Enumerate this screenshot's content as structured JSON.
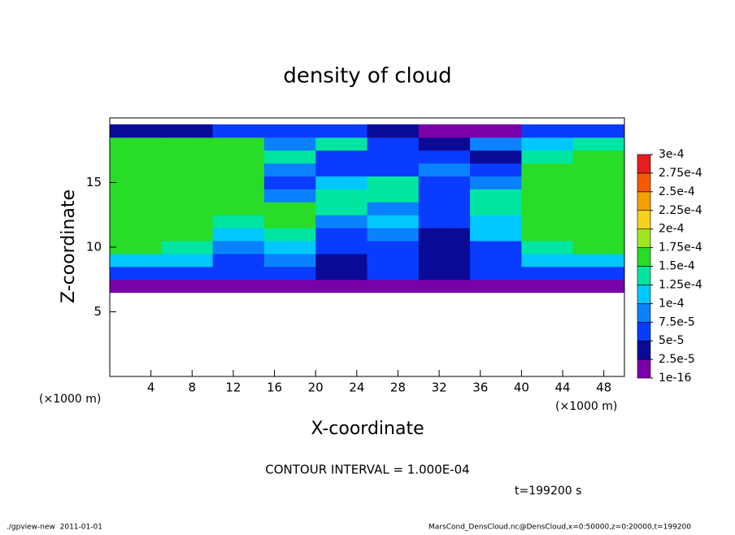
{
  "chart_data": {
    "type": "contour",
    "title": "density of cloud",
    "x_label": "X-coordinate",
    "y_label": "Z-coordinate",
    "x_unit_label": "(×1000 m)",
    "y_unit_label": "(×1000 m)",
    "xlim": [
      0,
      50
    ],
    "ylim": [
      0,
      20
    ],
    "xticks": [
      4,
      8,
      12,
      16,
      20,
      24,
      28,
      32,
      36,
      40,
      44,
      48
    ],
    "yticks": [
      5,
      10,
      15
    ],
    "x_bins": [
      0,
      5,
      10,
      15,
      20,
      25,
      30,
      35,
      40,
      45,
      50
    ],
    "z_bins": [
      6.5,
      7.5,
      8.5,
      9.5,
      10.5,
      11.5,
      12.5,
      13.5,
      14.5,
      15.5,
      16.5,
      17.5,
      18.5,
      19.5
    ],
    "z": [
      [
        2e-05,
        2e-05,
        2e-05,
        2e-05,
        2e-05,
        2e-05,
        2e-05,
        2e-05,
        2e-05,
        2e-05
      ],
      [
        6e-05,
        6e-05,
        6e-05,
        6e-05,
        3e-05,
        5e-05,
        3e-05,
        5e-05,
        6e-05,
        6e-05
      ],
      [
        0.00011,
        0.0001,
        7e-05,
        9e-05,
        4e-05,
        6e-05,
        3e-05,
        6e-05,
        0.0001,
        0.00011
      ],
      [
        0.00016,
        0.00013,
        8e-05,
        0.00012,
        5e-05,
        7e-05,
        4e-05,
        6e-05,
        0.00014,
        0.00015
      ],
      [
        0.00016,
        0.00015,
        0.0001,
        0.00014,
        6e-05,
        8e-05,
        4e-05,
        0.00012,
        0.00015,
        0.00016
      ],
      [
        0.00016,
        0.00016,
        0.00014,
        0.00015,
        8e-05,
        0.00011,
        5e-05,
        0.0001,
        0.00015,
        0.00016
      ],
      [
        0.00016,
        0.00016,
        0.00016,
        0.00015,
        0.00013,
        9e-05,
        7e-05,
        0.00014,
        0.00015,
        0.00016
      ],
      [
        0.00016,
        0.00016,
        0.00016,
        9e-05,
        0.00014,
        0.00014,
        5e-05,
        0.00013,
        0.00015,
        0.00016
      ],
      [
        0.00016,
        0.00016,
        0.00016,
        7e-05,
        0.0001,
        0.00014,
        6e-05,
        8e-05,
        0.00015,
        0.00016
      ],
      [
        0.00016,
        0.00016,
        0.00016,
        8e-05,
        6e-05,
        7e-05,
        9e-05,
        6e-05,
        0.00015,
        0.00016
      ],
      [
        0.00016,
        0.00016,
        0.00016,
        0.00014,
        6e-05,
        5e-05,
        6e-05,
        4e-05,
        0.00014,
        0.00016
      ],
      [
        0.00016,
        0.00016,
        0.00015,
        9e-05,
        0.00013,
        6e-05,
        4e-05,
        8e-05,
        0.00011,
        0.00014
      ],
      [
        4e-05,
        4e-05,
        5e-05,
        6e-05,
        6e-05,
        3e-05,
        2e-05,
        2e-05,
        5e-05,
        6e-05
      ]
    ],
    "colorbar": {
      "ticks": [
        {
          "value": 1e-16,
          "label": "1e-16"
        },
        {
          "value": 2.5e-05,
          "label": "2.5e-5"
        },
        {
          "value": 5e-05,
          "label": "5e-5"
        },
        {
          "value": 7.5e-05,
          "label": "7.5e-5"
        },
        {
          "value": 0.0001,
          "label": "1e-4"
        },
        {
          "value": 0.000125,
          "label": "1.25e-4"
        },
        {
          "value": 0.00015,
          "label": "1.5e-4"
        },
        {
          "value": 0.000175,
          "label": "1.75e-4"
        },
        {
          "value": 0.0002,
          "label": "2e-4"
        },
        {
          "value": 0.000225,
          "label": "2.25e-4"
        },
        {
          "value": 0.00025,
          "label": "2.5e-4"
        },
        {
          "value": 0.000275,
          "label": "2.75e-4"
        },
        {
          "value": 0.0003,
          "label": "3e-4"
        }
      ],
      "colors": [
        "#7a00a8",
        "#0a0a96",
        "#0a3cff",
        "#0a82ff",
        "#00c8ff",
        "#00e6a0",
        "#28dc28",
        "#a0e61e",
        "#f5d21e",
        "#f5a000",
        "#f55a00",
        "#e61e1e",
        "#f58c8c"
      ]
    },
    "contour_interval": "CONTOUR INTERVAL = 1.000E-04",
    "time_label": "t=199200 s",
    "footer_left": "./gpview-new  2011-01-01",
    "footer_right": "MarsCond_DensCloud.nc@DensCloud,x=0:50000,z=0:20000,t=199200"
  }
}
